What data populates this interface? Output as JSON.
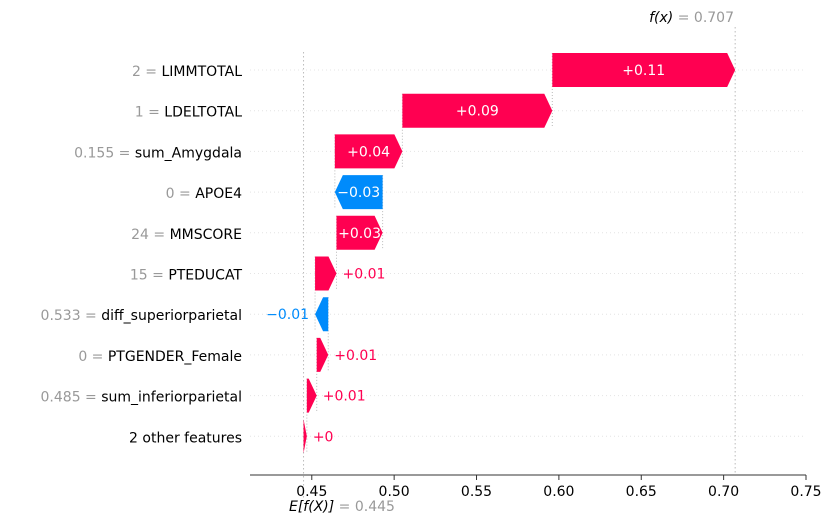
{
  "chart_data": {
    "type": "waterfall",
    "fx": {
      "label": "f(x)",
      "sep": " = ",
      "value": 0.707,
      "value_text": "0.707"
    },
    "ex": {
      "label": "E[f(X)]",
      "sep": " = ",
      "value": 0.445,
      "value_text": "0.445"
    },
    "xlim": [
      0.4125,
      0.75
    ],
    "ticks": [
      0.45,
      0.5,
      0.55,
      0.6,
      0.65,
      0.7,
      0.75
    ],
    "tick_labels": [
      "0.45",
      "0.50",
      "0.55",
      "0.60",
      "0.65",
      "0.70",
      "0.75"
    ],
    "colors": {
      "positive": "#ff0051",
      "negative": "#008bfb",
      "feature_value": "#999999",
      "label": "#000000"
    },
    "features": [
      {
        "value": "2",
        "name": "LIMMTOTAL",
        "start": 0.596,
        "end": 0.707,
        "label": "+0.11"
      },
      {
        "value": "1",
        "name": "LDELTOTAL",
        "start": 0.505,
        "end": 0.596,
        "label": "+0.09"
      },
      {
        "value": "0.155",
        "name": "sum_Amygdala",
        "start": 0.464,
        "end": 0.505,
        "label": "+0.04"
      },
      {
        "value": "0",
        "name": "APOE4",
        "start": 0.493,
        "end": 0.464,
        "label": "−0.03"
      },
      {
        "value": "24",
        "name": "MMSCORE",
        "start": 0.465,
        "end": 0.493,
        "label": "+0.03"
      },
      {
        "value": "15",
        "name": "PTEDUCAT",
        "start": 0.452,
        "end": 0.465,
        "label": "+0.01"
      },
      {
        "value": "0.533",
        "name": "diff_superiorparietal",
        "start": 0.46,
        "end": 0.452,
        "label": "−0.01"
      },
      {
        "value": "0",
        "name": "PTGENDER_Female",
        "start": 0.453,
        "end": 0.46,
        "label": "+0.01"
      },
      {
        "value": "0.485",
        "name": "sum_inferiorparietal",
        "start": 0.447,
        "end": 0.453,
        "label": "+0.01"
      },
      {
        "value": "",
        "name": "2 other features",
        "start": 0.445,
        "end": 0.447,
        "label": "+0"
      }
    ]
  }
}
